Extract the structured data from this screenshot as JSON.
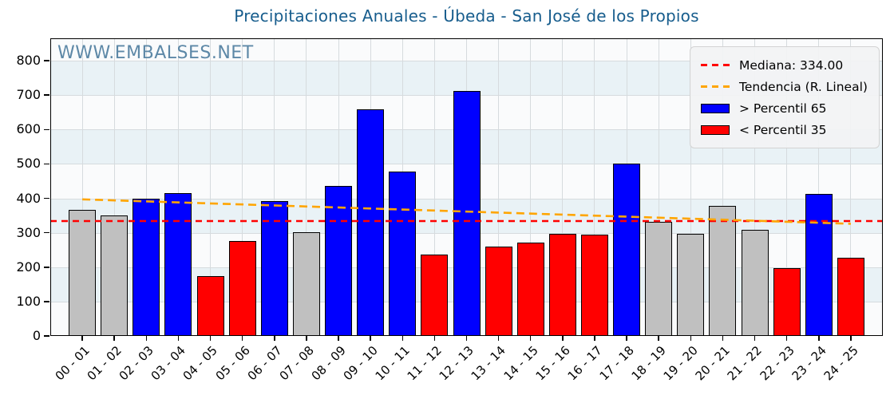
{
  "page": {
    "watermark": "WWW.EMBALSES.NET"
  },
  "colors": {
    "title": "#175d8d",
    "watermark": "#5d88a7",
    "bar_high": "#0000ff",
    "bar_mid": "#c0c0c0",
    "bar_low": "#ff0000",
    "median_line": "#ff0000",
    "trend_line": "#ffa500",
    "band_blue": "#e9f2f6",
    "band_white": "#fafbfc",
    "grid": "#d6dbde"
  },
  "legend": {
    "items": [
      {
        "type": "line",
        "color": "#ff0000",
        "label": "Mediana: 334.00"
      },
      {
        "type": "line",
        "color": "#ffa500",
        "label": "Tendencia (R. Lineal)"
      },
      {
        "type": "patch",
        "color": "#0000ff",
        "label": "> Percentil 65"
      },
      {
        "type": "patch",
        "color": "#ff0000",
        "label": "< Percentil 35"
      }
    ]
  },
  "chart_data": {
    "type": "bar",
    "title": "Precipitaciones Anuales - Úbeda - San José de los Propios",
    "categories": [
      "00 - 01",
      "01 - 02",
      "02 - 03",
      "03 - 04",
      "04 - 05",
      "05 - 06",
      "06 - 07",
      "07 - 08",
      "08 - 09",
      "09 - 10",
      "10 - 11",
      "11 - 12",
      "12 - 13",
      "13 - 14",
      "14 - 15",
      "15 - 16",
      "16 - 17",
      "17 - 18",
      "18 - 19",
      "19 - 20",
      "20 - 21",
      "21 - 22",
      "22 - 23",
      "23 - 24",
      "24 - 25"
    ],
    "values": [
      367,
      350,
      399,
      416,
      173,
      275,
      393,
      302,
      437,
      659,
      477,
      236,
      712,
      259,
      272,
      297,
      295,
      502,
      331,
      297,
      378,
      308,
      197,
      412,
      228
    ],
    "bar_classes": [
      "mid",
      "mid",
      "high",
      "high",
      "low",
      "low",
      "high",
      "mid",
      "high",
      "high",
      "high",
      "low",
      "high",
      "low",
      "low",
      "low",
      "low",
      "high",
      "mid",
      "mid",
      "mid",
      "mid",
      "low",
      "high",
      "low"
    ],
    "median": 334,
    "median_label": "Mediana: 334.00",
    "trend": {
      "label": "Tendencia (R. Lineal)",
      "start_value": 397,
      "end_value": 326
    },
    "percentile_high_label": "> Percentil 65",
    "percentile_low_label": "< Percentil 35",
    "ylabel": "",
    "xlabel": "",
    "ylim": [
      0,
      865
    ],
    "yticks": [
      0,
      100,
      200,
      300,
      400,
      500,
      600,
      700,
      800
    ],
    "grid": true,
    "legend_position": "upper right"
  }
}
